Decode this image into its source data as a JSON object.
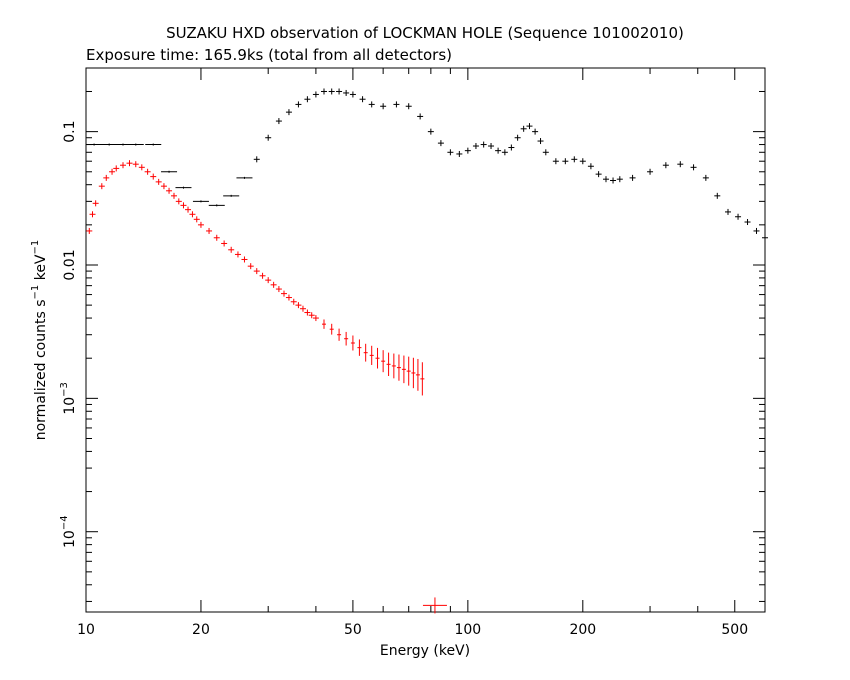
{
  "chart_data": {
    "type": "scatter",
    "title": "SUZAKU HXD observation of LOCKMAN HOLE (Sequence 101002010)",
    "subtitle": "Exposure time: 165.9ks (total from all detectors)",
    "xlabel": "Energy (keV)",
    "ylabel_text": "normalized counts s",
    "ylabel_sup": "−1",
    "ylabel_text2": " keV",
    "ylabel_sup2": "−1",
    "xscale": "log",
    "yscale": "log",
    "xlim": [
      10,
      600
    ],
    "ylim": [
      2.5e-05,
      0.3
    ],
    "grid": false,
    "x_ticks": [
      {
        "value": 10,
        "label": "10"
      },
      {
        "value": 20,
        "label": "20"
      },
      {
        "value": 50,
        "label": "50"
      },
      {
        "value": 100,
        "label": "100"
      },
      {
        "value": 200,
        "label": "200"
      },
      {
        "value": 500,
        "label": "500"
      }
    ],
    "y_ticks": [
      {
        "value": 0.1,
        "label": "0.1",
        "base": "",
        "exp": ""
      },
      {
        "value": 0.01,
        "label": "0.01",
        "base": "",
        "exp": ""
      },
      {
        "value": 0.001,
        "label": "",
        "base": "10",
        "exp": "−3"
      },
      {
        "value": 0.0001,
        "label": "",
        "base": "10",
        "exp": "−4"
      }
    ],
    "series": [
      {
        "color": "#000000",
        "x": [
          10.5,
          11.5,
          12.5,
          13.5,
          15,
          16.5,
          18,
          20,
          22,
          24,
          26,
          28,
          30,
          32,
          34,
          36,
          38,
          40,
          42,
          44,
          46,
          48,
          50,
          53,
          56,
          60,
          65,
          70,
          75,
          80,
          85,
          90,
          95,
          100,
          105,
          110,
          115,
          120,
          125,
          130,
          135,
          140,
          145,
          150,
          155,
          160,
          170,
          180,
          190,
          200,
          210,
          220,
          230,
          240,
          250,
          270,
          300,
          330,
          360,
          390,
          420,
          450,
          480,
          510,
          540,
          570,
          600
        ],
        "y": [
          0.08,
          0.08,
          0.08,
          0.08,
          0.08,
          0.05,
          0.038,
          0.03,
          0.028,
          0.033,
          0.045,
          0.062,
          0.09,
          0.12,
          0.14,
          0.16,
          0.175,
          0.19,
          0.2,
          0.2,
          0.2,
          0.195,
          0.19,
          0.175,
          0.16,
          0.155,
          0.16,
          0.155,
          0.13,
          0.1,
          0.082,
          0.07,
          0.068,
          0.072,
          0.078,
          0.08,
          0.078,
          0.072,
          0.07,
          0.076,
          0.09,
          0.105,
          0.11,
          0.1,
          0.085,
          0.07,
          0.06,
          0.06,
          0.062,
          0.06,
          0.055,
          0.048,
          0.044,
          0.043,
          0.044,
          0.045,
          0.05,
          0.056,
          0.057,
          0.054,
          0.045,
          0.033,
          0.025,
          0.023,
          0.021,
          0.018,
          0.016
        ]
      },
      {
        "color": "#ff0000",
        "x": [
          10.2,
          10.4,
          10.6,
          11,
          11.3,
          11.7,
          12,
          12.5,
          13,
          13.5,
          14,
          14.5,
          15,
          15.5,
          16,
          16.5,
          17,
          17.5,
          18,
          18.5,
          19,
          19.5,
          20,
          21,
          22,
          23,
          24,
          25,
          26,
          27,
          28,
          29,
          30,
          31,
          32,
          33,
          34,
          35,
          36,
          37,
          38,
          39,
          40,
          42,
          44,
          46,
          48,
          50,
          52,
          54,
          56,
          58,
          60,
          62,
          64,
          66,
          68,
          70,
          72,
          74,
          76
        ],
        "y": [
          0.018,
          0.024,
          0.029,
          0.039,
          0.045,
          0.05,
          0.053,
          0.056,
          0.058,
          0.057,
          0.054,
          0.05,
          0.046,
          0.042,
          0.039,
          0.036,
          0.033,
          0.03,
          0.028,
          0.026,
          0.024,
          0.022,
          0.02,
          0.018,
          0.016,
          0.0145,
          0.013,
          0.012,
          0.011,
          0.0098,
          0.009,
          0.0083,
          0.0077,
          0.0071,
          0.0066,
          0.0061,
          0.0057,
          0.0053,
          0.005,
          0.0047,
          0.0044,
          0.0042,
          0.004,
          0.0036,
          0.0033,
          0.003,
          0.0028,
          0.0026,
          0.0024,
          0.0022,
          0.0021,
          0.002,
          0.0019,
          0.0018,
          0.00175,
          0.0017,
          0.00165,
          0.0016,
          0.00155,
          0.0015,
          0.0014
        ]
      },
      {
        "color": "#ff0000",
        "x": [
          82
        ],
        "y": [
          2.8e-05
        ]
      }
    ]
  }
}
